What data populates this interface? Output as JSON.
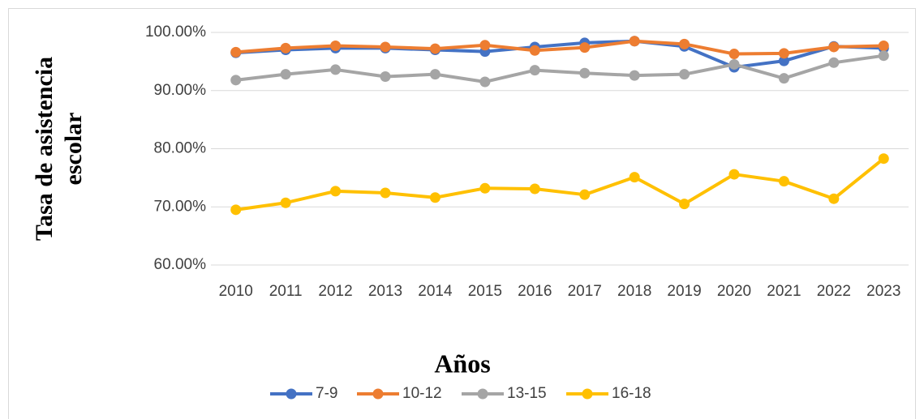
{
  "chart_data": {
    "type": "line",
    "ylabel": [
      "Tasa de asistencia",
      "escolar"
    ],
    "xlabel": "Años",
    "categories": [
      "2010",
      "2011",
      "2012",
      "2013",
      "2014",
      "2015",
      "2016",
      "2017",
      "2018",
      "2019",
      "2020",
      "2021",
      "2022",
      "2023"
    ],
    "series": [
      {
        "name": "7-9",
        "color": "#4472c4",
        "values": [
          96.5,
          97.0,
          97.3,
          97.3,
          97.0,
          96.7,
          97.5,
          98.2,
          98.5,
          97.6,
          94.0,
          95.1,
          97.6,
          97.3
        ]
      },
      {
        "name": "10-12",
        "color": "#ed7d31",
        "values": [
          96.6,
          97.3,
          97.7,
          97.5,
          97.2,
          97.8,
          96.9,
          97.4,
          98.5,
          98.0,
          96.3,
          96.4,
          97.5,
          97.7
        ]
      },
      {
        "name": "13-15",
        "color": "#a5a5a5",
        "values": [
          91.8,
          92.8,
          93.6,
          92.4,
          92.8,
          91.5,
          93.5,
          93.0,
          92.6,
          92.8,
          94.5,
          92.1,
          94.8,
          96.0
        ]
      },
      {
        "name": "16-18",
        "color": "#ffc000",
        "values": [
          69.5,
          70.7,
          72.7,
          72.4,
          71.6,
          73.2,
          73.1,
          72.1,
          75.1,
          70.5,
          75.6,
          74.4,
          71.4,
          78.3
        ]
      }
    ],
    "ylim": [
      60,
      100
    ],
    "yticks": [
      {
        "value": 60,
        "label": "60.00%"
      },
      {
        "value": 70,
        "label": "70.00%"
      },
      {
        "value": 80,
        "label": "80.00%"
      },
      {
        "value": 90,
        "label": "90.00%"
      },
      {
        "value": 100,
        "label": "100.00%"
      }
    ],
    "grid": true,
    "legend": "bottom"
  }
}
